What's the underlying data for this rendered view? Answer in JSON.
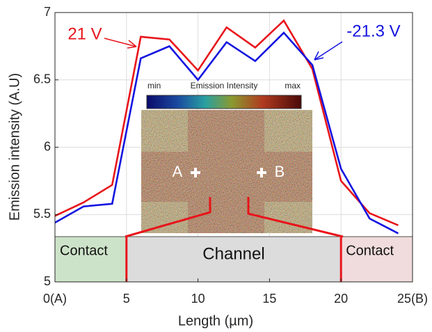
{
  "chart_data": {
    "type": "line",
    "x_label": "Length (µm)",
    "y_label": "Emission intensity (A.U)",
    "xlim": [
      0,
      25
    ],
    "ylim": [
      5,
      7
    ],
    "xticks": [
      {
        "value": 0,
        "label": "0(A)"
      },
      5,
      10,
      15,
      20,
      {
        "value": 25,
        "label": "25(B)"
      }
    ],
    "yticks": [
      5,
      5.5,
      6,
      6.5,
      7
    ],
    "grid": true,
    "x": [
      0,
      2,
      4,
      6,
      8,
      10,
      12,
      14,
      16,
      18,
      20,
      22,
      24
    ],
    "series": [
      {
        "name": "21 V",
        "color": "#e8141a",
        "values": [
          5.49,
          5.59,
          5.72,
          6.82,
          6.8,
          6.57,
          6.89,
          6.74,
          6.94,
          6.58,
          5.75,
          5.51,
          5.42
        ]
      },
      {
        "name": "-21.3 V",
        "color": "#1414e0",
        "values": [
          5.44,
          5.56,
          5.58,
          6.66,
          6.75,
          6.5,
          6.78,
          6.64,
          6.85,
          6.61,
          5.84,
          5.47,
          5.36
        ]
      }
    ],
    "regions": [
      {
        "label": "Contact",
        "start": 0,
        "end": 5,
        "color": "#cde3c9"
      },
      {
        "label": "Channel",
        "start": 5,
        "end": 20,
        "color": "#dcdcdc"
      },
      {
        "label": "Contact",
        "start": 20,
        "end": 25,
        "color": "#f0dcdc"
      }
    ],
    "inset": {
      "colorbar_min": "min",
      "colorbar_title": "Emission Intensity",
      "colorbar_max": "max",
      "point_a": "A",
      "point_b": "B"
    }
  }
}
